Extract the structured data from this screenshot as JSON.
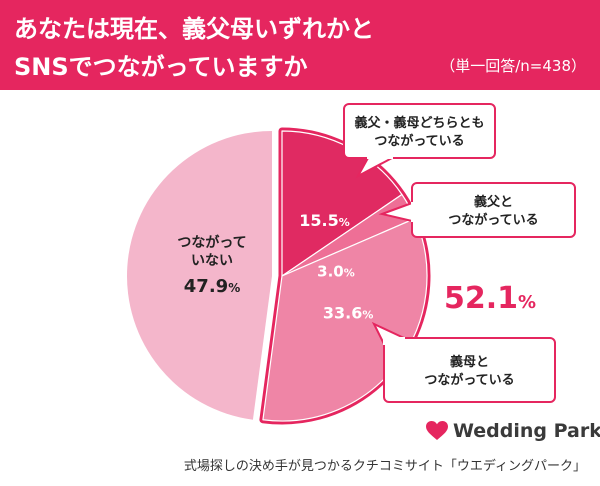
{
  "header": {
    "title_line1": "あなたは現在、義父母いずれかと",
    "title_line2": "SNSでつながっていますか",
    "sample_note": "（単一回答/n=438）",
    "background_color": "#e5265f"
  },
  "chart_data": {
    "type": "pie",
    "slices": [
      {
        "label": "つながっていない",
        "value": 47.9,
        "value_text": "47.9",
        "color": "#f4b6cb",
        "label_lines": [
          "つながって",
          "いない"
        ]
      },
      {
        "label": "義父・義母どちらともつながっている",
        "value": 15.5,
        "value_text": "15.5",
        "color": "#e02a62",
        "callout_lines": [
          "義父・義母どちらとも",
          "つながっている"
        ]
      },
      {
        "label": "義父とつながっている",
        "value": 3.0,
        "value_text": "3.0",
        "color": "#ee6f96",
        "callout_lines": [
          "義父と",
          "つながっている"
        ]
      },
      {
        "label": "義母とつながっている",
        "value": 33.6,
        "value_text": "33.6",
        "color": "#ef85a6",
        "callout_lines": [
          "義母と",
          "つながっている"
        ]
      }
    ],
    "unit": "%",
    "total_connected": "52.1",
    "total_color": "#e5265f"
  },
  "footer": {
    "brand_name": "Wedding Park",
    "brand_color": "#e5265f",
    "caption": "式場探しの決め手が見つかるクチコミサイト「ウエディングパーク」"
  }
}
